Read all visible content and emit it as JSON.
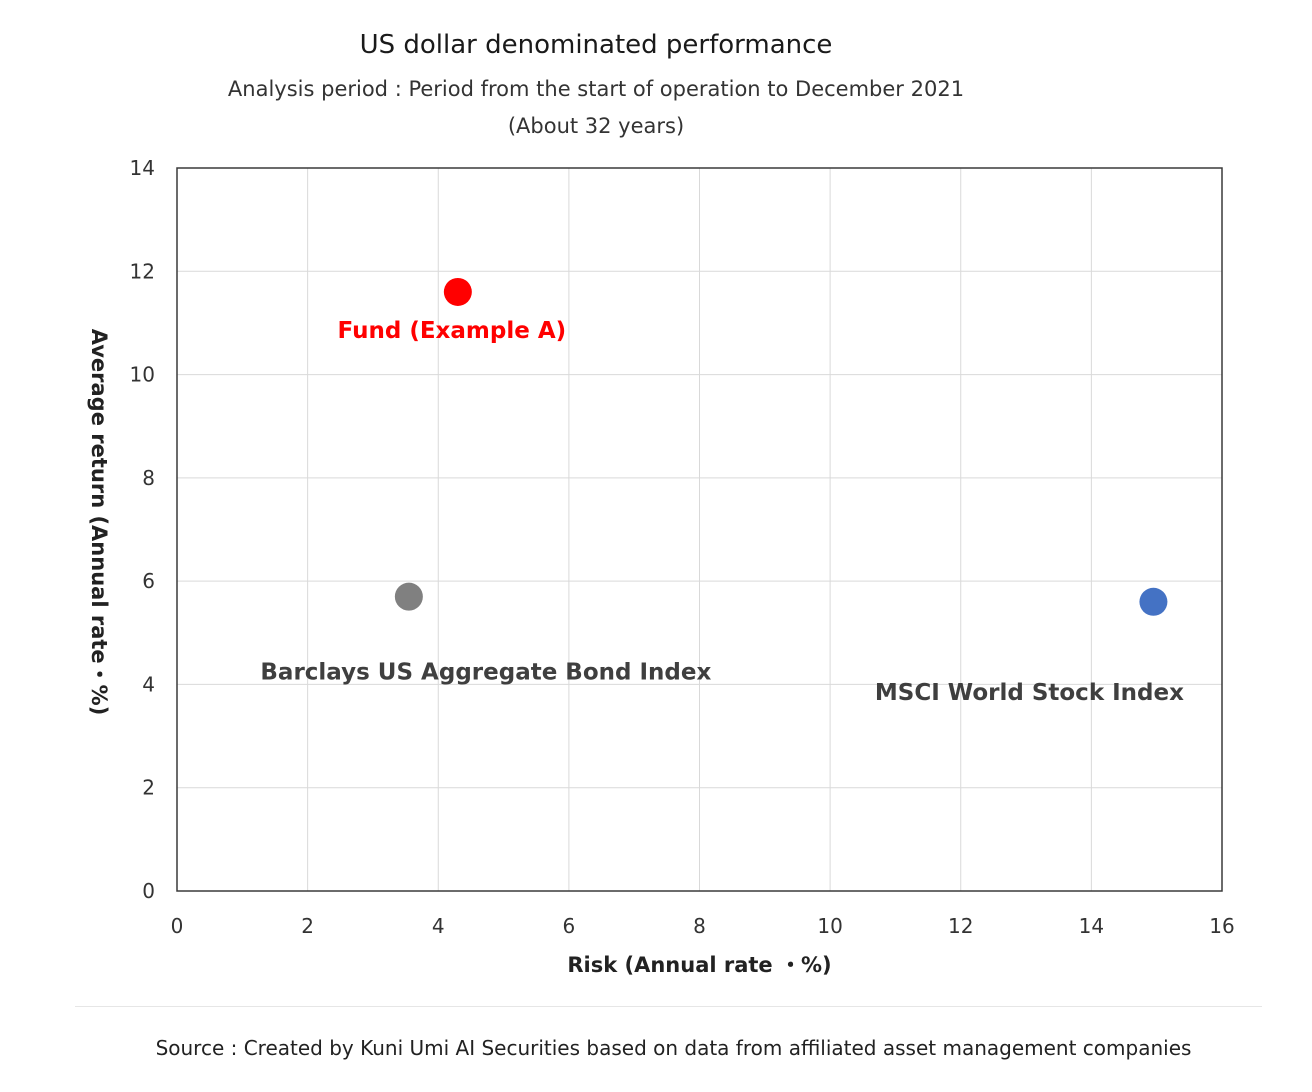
{
  "chart_data": {
    "type": "scatter",
    "title": "US dollar denominated performance",
    "subtitle": "Analysis period : Period from the start of operation to December 2021",
    "subtitle2": "(About 32 years)",
    "xlabel": "Risk (Annual rate ・%)",
    "ylabel": "Average return (Annual rate・%)",
    "xlim": [
      0,
      16
    ],
    "ylim": [
      0,
      14
    ],
    "xticks": [
      0,
      2,
      4,
      6,
      8,
      10,
      12,
      14,
      16
    ],
    "yticks": [
      0,
      2,
      4,
      6,
      8,
      10,
      12,
      14
    ],
    "grid": true,
    "points": [
      {
        "label": "Fund (Example A)",
        "x": 4.3,
        "y": 11.6,
        "color": "#ff0000",
        "label_color": "#ff0000"
      },
      {
        "label": "Barclays US Aggregate Bond Index",
        "x": 3.55,
        "y": 5.7,
        "color": "#808080",
        "label_color": "#3f3f3f"
      },
      {
        "label": "MSCI World Stock Index",
        "x": 14.95,
        "y": 5.6,
        "color": "#4472c4",
        "label_color": "#3f3f3f"
      }
    ]
  },
  "source": "Source : Created by Kuni Umi AI Securities based on data from affiliated asset management companies"
}
